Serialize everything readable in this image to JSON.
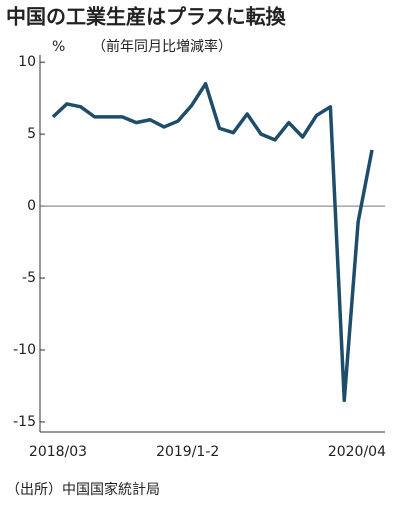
{
  "chart_data": {
    "type": "line",
    "title": "中国の工業生産はプラスに転換",
    "y_label": "%",
    "subtitle": "（前年同月比増減率）",
    "source": "（出所）中国国家統計局",
    "categories": [
      "2018/03",
      null,
      null,
      null,
      null,
      null,
      null,
      null,
      null,
      null,
      "2019/1-2",
      null,
      null,
      null,
      null,
      null,
      null,
      null,
      null,
      null,
      null,
      null,
      null,
      "2020/04"
    ],
    "series": [
      {
        "name": "工業生産",
        "color": "#1e4d6b",
        "values": [
          6.2,
          7.1,
          6.9,
          6.2,
          6.2,
          6.2,
          5.8,
          6.0,
          5.5,
          5.9,
          7.0,
          8.5,
          5.4,
          5.1,
          6.4,
          5.0,
          4.6,
          5.8,
          4.8,
          6.3,
          6.9,
          -13.5,
          -1.1,
          3.9
        ]
      }
    ],
    "ylim": [
      -15.7,
      10.5
    ],
    "yticks": [
      10,
      5,
      0,
      -5,
      -10,
      -15
    ]
  }
}
